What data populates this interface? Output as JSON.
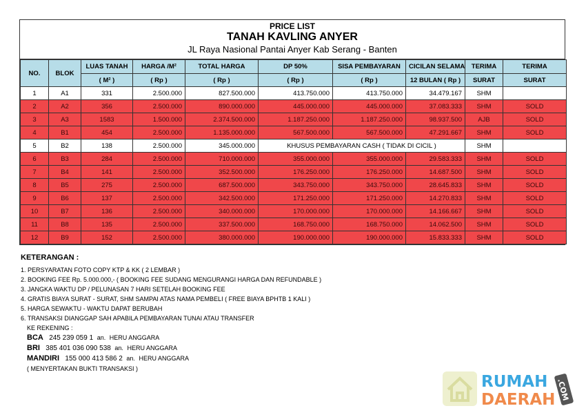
{
  "header": {
    "label": "PRICE LIST",
    "title": "TANAH KAVLING ANYER",
    "address": "JL Raya Nasional Pantai Anyer Kab Serang - Banten"
  },
  "columns": {
    "row1": [
      "NO.",
      "BLOK",
      "LUAS TANAH",
      "HARGA  /M²",
      "TOTAL HARGA",
      "DP 50%",
      "SISA PEMBAYARAN",
      "CICILAN SELAMA",
      "TERIMA",
      "TERIMA"
    ],
    "row2": [
      "( M² )",
      "( Rp )",
      "( Rp )",
      "( Rp )",
      "( Rp )",
      "12 BULAN ( Rp )",
      "SURAT",
      "SURAT"
    ]
  },
  "rows": [
    {
      "no": "1",
      "blok": "A1",
      "luas": "331",
      "harga": "2.500.000",
      "total": "827.500.000",
      "dp": "413.750.000",
      "sisa": "413.750.000",
      "cicilan": "34.479.167",
      "surat": "SHM",
      "status": ""
    },
    {
      "no": "2",
      "blok": "A2",
      "luas": "356",
      "harga": "2.500.000",
      "total": "890.000.000",
      "dp": "445.000.000",
      "sisa": "445.000.000",
      "cicilan": "37.083.333",
      "surat": "SHM",
      "status": "SOLD"
    },
    {
      "no": "3",
      "blok": "A3",
      "luas": "1583",
      "harga": "1.500.000",
      "total": "2.374.500.000",
      "dp": "1.187.250.000",
      "sisa": "1.187.250.000",
      "cicilan": "98.937.500",
      "surat": "AJB",
      "status": "SOLD"
    },
    {
      "no": "4",
      "blok": "B1",
      "luas": "454",
      "harga": "2.500.000",
      "total": "1.135.000.000",
      "dp": "567.500.000",
      "sisa": "567.500.000",
      "cicilan": "47.291.667",
      "surat": "SHM",
      "status": "SOLD"
    },
    {
      "no": "5",
      "blok": "B2",
      "luas": "138",
      "harga": "2.500.000",
      "total": "345.000.000",
      "note": "KHUSUS PEMBAYARAN CASH ( TIDAK DI CICIL )",
      "surat": "SHM",
      "status": ""
    },
    {
      "no": "6",
      "blok": "B3",
      "luas": "284",
      "harga": "2.500.000",
      "total": "710.000.000",
      "dp": "355.000.000",
      "sisa": "355.000.000",
      "cicilan": "29.583.333",
      "surat": "SHM",
      "status": "SOLD"
    },
    {
      "no": "7",
      "blok": "B4",
      "luas": "141",
      "harga": "2.500.000",
      "total": "352.500.000",
      "dp": "176.250.000",
      "sisa": "176.250.000",
      "cicilan": "14.687.500",
      "surat": "SHM",
      "status": "SOLD"
    },
    {
      "no": "8",
      "blok": "B5",
      "luas": "275",
      "harga": "2.500.000",
      "total": "687.500.000",
      "dp": "343.750.000",
      "sisa": "343.750.000",
      "cicilan": "28.645.833",
      "surat": "SHM",
      "status": "SOLD"
    },
    {
      "no": "9",
      "blok": "B6",
      "luas": "137",
      "harga": "2.500.000",
      "total": "342.500.000",
      "dp": "171.250.000",
      "sisa": "171.250.000",
      "cicilan": "14.270.833",
      "surat": "SHM",
      "status": "SOLD"
    },
    {
      "no": "10",
      "blok": "B7",
      "luas": "136",
      "harga": "2.500.000",
      "total": "340.000.000",
      "dp": "170.000.000",
      "sisa": "170.000.000",
      "cicilan": "14.166.667",
      "surat": "SHM",
      "status": "SOLD"
    },
    {
      "no": "11",
      "blok": "B8",
      "luas": "135",
      "harga": "2.500.000",
      "total": "337.500.000",
      "dp": "168.750.000",
      "sisa": "168.750.000",
      "cicilan": "14.062.500",
      "surat": "SHM",
      "status": "SOLD"
    },
    {
      "no": "12",
      "blok": "B9",
      "luas": "152",
      "harga": "2.500.000",
      "total": "380.000.000",
      "dp": "190.000.000",
      "sisa": "190.000.000",
      "cicilan": "15.833.333",
      "surat": "SHM",
      "status": "SOLD"
    }
  ],
  "notes": {
    "heading": "KETERANGAN :",
    "items": [
      "1. PERSYARATAN FOTO COPY KTP & KK ( 2 LEMBAR )",
      "2. BOOKING FEE Rp. 5.000.000,- ( BOOKING FEE SUDANG MENGURANGI HARGA DAN REFUNDABLE )",
      "3. JANGKA WAKTU DP / PELUNASAN 7 HARI SETELAH BOOKING FEE",
      "4. GRATIS BIAYA SURAT - SURAT, SHM  SAMPAI ATAS NAMA PEMBELI ( FREE BIAYA BPHTB 1 KALI )",
      "5. HARGA SEWAKTU - WAKTU DAPAT BERUBAH",
      "6. TRANSAKSI DIANGGAP SAH APABILA PEMBAYARAN TUNAI ATAU TRANSFER"
    ],
    "rekening_label": "KE REKENING :",
    "banks": [
      {
        "bank": "BCA",
        "number": "245 239 059 1",
        "an": "an.",
        "name": "HERU ANGGARA"
      },
      {
        "bank": "BRI",
        "number": "385 401 036 090 538",
        "an": "an.",
        "name": "HERU ANGGARA"
      },
      {
        "bank": "MANDIRI",
        "number": "155 000 413 586 2",
        "an": "an.",
        "name": "HERU ANGGARA"
      }
    ],
    "footer": "( MENYERTAKAN BUKTI TRANSAKSI )"
  },
  "watermark": {
    "line1": "RUMAH",
    "line2": "DAERAH",
    "suffix": ".COM"
  },
  "colors": {
    "sold": "#f0474a",
    "header": "#b7dde8",
    "logo_blue": "#3aa7e0",
    "logo_orange": "#f08a4b"
  }
}
